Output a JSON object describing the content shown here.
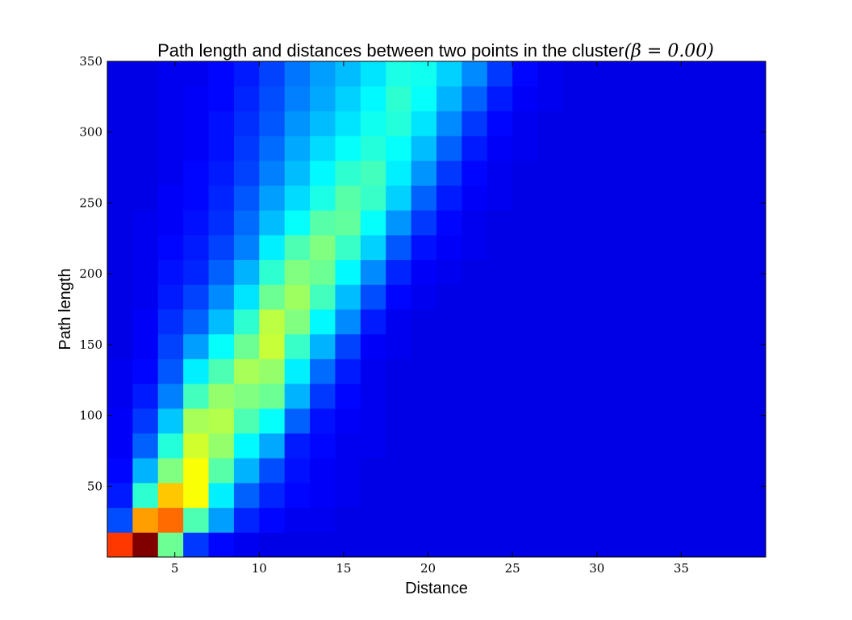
{
  "chart_data": {
    "type": "heatmap",
    "title": "Path length and distances between two points in the cluster",
    "title_math": "(β = 0.00)",
    "xlabel": "Distance",
    "ylabel": "Path length",
    "xlim": [
      1,
      40
    ],
    "ylim": [
      0,
      350
    ],
    "x_ticks": [
      5,
      10,
      15,
      20,
      25,
      30,
      35
    ],
    "y_ticks": [
      50,
      100,
      150,
      200,
      250,
      300,
      350
    ],
    "colormap": "jet",
    "grid": false,
    "x_bin_width": 1.5,
    "y_bin_height": 17.5,
    "value_scale": "normalized 0-1 (1 = maximum count)",
    "rows_bottom_to_top": [
      [
        0.82,
        1.0,
        0.48,
        0.18,
        0.13,
        0.11,
        0.1,
        0.1,
        0.1,
        0.1,
        0.1,
        0.1,
        0.1,
        0.1,
        0.1,
        0.1,
        0.1,
        0.1,
        0.1,
        0.1,
        0.1,
        0.1,
        0.1,
        0.1,
        0.1,
        0.1
      ],
      [
        0.2,
        0.72,
        0.77,
        0.45,
        0.28,
        0.16,
        0.13,
        0.11,
        0.11,
        0.1,
        0.1,
        0.1,
        0.1,
        0.1,
        0.1,
        0.1,
        0.1,
        0.1,
        0.1,
        0.1,
        0.1,
        0.1,
        0.1,
        0.1,
        0.1,
        0.1
      ],
      [
        0.15,
        0.42,
        0.68,
        0.62,
        0.36,
        0.22,
        0.16,
        0.13,
        0.12,
        0.11,
        0.1,
        0.1,
        0.1,
        0.1,
        0.1,
        0.1,
        0.1,
        0.1,
        0.1,
        0.1,
        0.1,
        0.1,
        0.1,
        0.1,
        0.1,
        0.1
      ],
      [
        0.13,
        0.3,
        0.5,
        0.62,
        0.46,
        0.3,
        0.2,
        0.14,
        0.12,
        0.11,
        0.1,
        0.1,
        0.1,
        0.1,
        0.1,
        0.1,
        0.1,
        0.1,
        0.1,
        0.1,
        0.1,
        0.1,
        0.1,
        0.1,
        0.1,
        0.1
      ],
      [
        0.12,
        0.22,
        0.41,
        0.58,
        0.52,
        0.37,
        0.29,
        0.15,
        0.13,
        0.11,
        0.11,
        0.1,
        0.1,
        0.1,
        0.1,
        0.1,
        0.1,
        0.1,
        0.1,
        0.1,
        0.1,
        0.1,
        0.1,
        0.1,
        0.1,
        0.1
      ],
      [
        0.12,
        0.18,
        0.32,
        0.54,
        0.55,
        0.45,
        0.38,
        0.22,
        0.14,
        0.12,
        0.11,
        0.1,
        0.1,
        0.1,
        0.1,
        0.1,
        0.1,
        0.1,
        0.1,
        0.1,
        0.1,
        0.1,
        0.1,
        0.1,
        0.1,
        0.1
      ],
      [
        0.11,
        0.15,
        0.25,
        0.44,
        0.52,
        0.5,
        0.48,
        0.3,
        0.18,
        0.13,
        0.11,
        0.1,
        0.1,
        0.1,
        0.1,
        0.1,
        0.1,
        0.1,
        0.1,
        0.1,
        0.1,
        0.1,
        0.1,
        0.1,
        0.1,
        0.1
      ],
      [
        0.11,
        0.13,
        0.21,
        0.36,
        0.45,
        0.54,
        0.52,
        0.36,
        0.23,
        0.15,
        0.11,
        0.1,
        0.1,
        0.1,
        0.1,
        0.1,
        0.1,
        0.1,
        0.1,
        0.1,
        0.1,
        0.1,
        0.1,
        0.1,
        0.1,
        0.1
      ],
      [
        0.1,
        0.12,
        0.19,
        0.28,
        0.38,
        0.48,
        0.57,
        0.43,
        0.3,
        0.19,
        0.12,
        0.11,
        0.1,
        0.1,
        0.1,
        0.1,
        0.1,
        0.1,
        0.1,
        0.1,
        0.1,
        0.1,
        0.1,
        0.1,
        0.1,
        0.1
      ],
      [
        0.1,
        0.12,
        0.17,
        0.22,
        0.31,
        0.42,
        0.56,
        0.5,
        0.37,
        0.26,
        0.15,
        0.11,
        0.1,
        0.1,
        0.1,
        0.1,
        0.1,
        0.1,
        0.1,
        0.1,
        0.1,
        0.1,
        0.1,
        0.1,
        0.1,
        0.1
      ],
      [
        0.1,
        0.11,
        0.15,
        0.19,
        0.26,
        0.35,
        0.48,
        0.53,
        0.44,
        0.31,
        0.2,
        0.13,
        0.11,
        0.1,
        0.1,
        0.1,
        0.1,
        0.1,
        0.1,
        0.1,
        0.1,
        0.1,
        0.1,
        0.1,
        0.1,
        0.1
      ],
      [
        0.1,
        0.11,
        0.14,
        0.16,
        0.22,
        0.3,
        0.42,
        0.5,
        0.48,
        0.37,
        0.26,
        0.16,
        0.12,
        0.11,
        0.1,
        0.1,
        0.1,
        0.1,
        0.1,
        0.1,
        0.1,
        0.1,
        0.1,
        0.1,
        0.1,
        0.1
      ],
      [
        0.1,
        0.11,
        0.13,
        0.15,
        0.19,
        0.25,
        0.36,
        0.45,
        0.5,
        0.43,
        0.33,
        0.21,
        0.14,
        0.12,
        0.11,
        0.1,
        0.1,
        0.1,
        0.1,
        0.1,
        0.1,
        0.1,
        0.1,
        0.1,
        0.1,
        0.1
      ],
      [
        0.1,
        0.11,
        0.12,
        0.14,
        0.17,
        0.23,
        0.31,
        0.38,
        0.46,
        0.47,
        0.38,
        0.27,
        0.18,
        0.13,
        0.11,
        0.1,
        0.1,
        0.1,
        0.1,
        0.1,
        0.1,
        0.1,
        0.1,
        0.1,
        0.1,
        0.1
      ],
      [
        0.1,
        0.1,
        0.12,
        0.13,
        0.16,
        0.21,
        0.28,
        0.34,
        0.4,
        0.46,
        0.43,
        0.33,
        0.22,
        0.15,
        0.12,
        0.11,
        0.1,
        0.1,
        0.1,
        0.1,
        0.1,
        0.1,
        0.1,
        0.1,
        0.1,
        0.1
      ],
      [
        0.1,
        0.1,
        0.11,
        0.13,
        0.15,
        0.19,
        0.25,
        0.31,
        0.37,
        0.42,
        0.44,
        0.36,
        0.27,
        0.18,
        0.13,
        0.11,
        0.1,
        0.1,
        0.1,
        0.1,
        0.1,
        0.1,
        0.1,
        0.1,
        0.1,
        0.1
      ],
      [
        0.1,
        0.1,
        0.11,
        0.12,
        0.14,
        0.18,
        0.23,
        0.29,
        0.34,
        0.38,
        0.41,
        0.38,
        0.31,
        0.22,
        0.15,
        0.12,
        0.11,
        0.1,
        0.1,
        0.1,
        0.1,
        0.1,
        0.1,
        0.1,
        0.1,
        0.1
      ],
      [
        0.1,
        0.1,
        0.11,
        0.12,
        0.14,
        0.17,
        0.21,
        0.27,
        0.31,
        0.35,
        0.39,
        0.41,
        0.35,
        0.26,
        0.18,
        0.13,
        0.11,
        0.1,
        0.1,
        0.1,
        0.1,
        0.1,
        0.1,
        0.1,
        0.1,
        0.1
      ],
      [
        0.1,
        0.1,
        0.11,
        0.12,
        0.13,
        0.16,
        0.2,
        0.25,
        0.29,
        0.33,
        0.37,
        0.42,
        0.38,
        0.3,
        0.22,
        0.15,
        0.12,
        0.11,
        0.1,
        0.1,
        0.1,
        0.1,
        0.1,
        0.1,
        0.1,
        0.1
      ],
      [
        0.1,
        0.1,
        0.11,
        0.11,
        0.13,
        0.15,
        0.19,
        0.24,
        0.28,
        0.31,
        0.35,
        0.4,
        0.39,
        0.33,
        0.26,
        0.18,
        0.13,
        0.11,
        0.1,
        0.1,
        0.1,
        0.1,
        0.1,
        0.1,
        0.1,
        0.1
      ]
    ]
  }
}
